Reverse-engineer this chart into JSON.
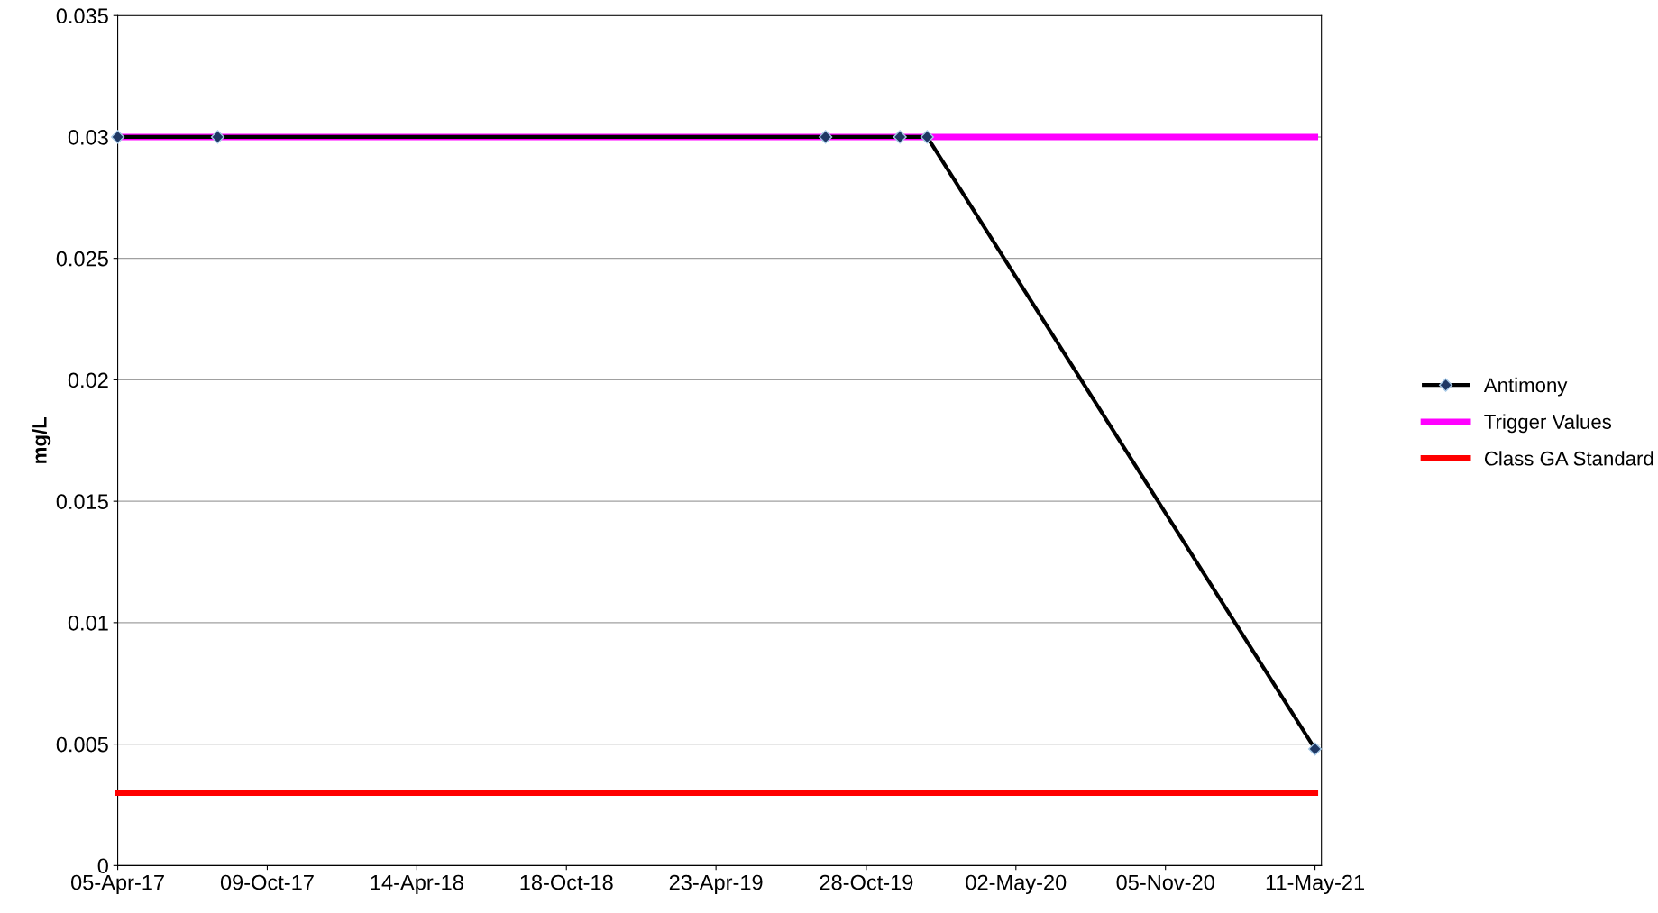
{
  "chart_data": {
    "type": "line",
    "ylabel": "mg/L",
    "series": [
      {
        "name": "Antimony",
        "color": "#000000",
        "marker": "diamond",
        "x": [
          "2017-04-05",
          "2017-08-08",
          "2019-09-07",
          "2019-12-09",
          "2020-01-12",
          "2021-05-11"
        ],
        "values": [
          0.03,
          0.03,
          0.03,
          0.03,
          0.03,
          0.0048
        ]
      },
      {
        "name": "Trigger Values",
        "color": "#ff00ff",
        "marker": "none",
        "x": [
          "2017-04-05",
          "2021-05-11"
        ],
        "values": [
          0.03,
          0.03
        ]
      },
      {
        "name": "Class GA Standard",
        "color": "#ff0000",
        "marker": "none",
        "x": [
          "2017-04-05",
          "2021-05-11"
        ],
        "values": [
          0.003,
          0.003
        ]
      }
    ],
    "xlim": [
      "2017-04-05",
      "2021-05-19"
    ],
    "xticks": [
      {
        "value": "2017-04-05",
        "label": "05-Apr-17"
      },
      {
        "value": "2017-10-09",
        "label": "09-Oct-17"
      },
      {
        "value": "2018-04-14",
        "label": "14-Apr-18"
      },
      {
        "value": "2018-10-18",
        "label": "18-Oct-18"
      },
      {
        "value": "2019-04-23",
        "label": "23-Apr-19"
      },
      {
        "value": "2019-10-28",
        "label": "28-Oct-19"
      },
      {
        "value": "2020-05-02",
        "label": "02-May-20"
      },
      {
        "value": "2020-11-05",
        "label": "05-Nov-20"
      },
      {
        "value": "2021-05-11",
        "label": "11-May-21"
      }
    ],
    "ylim": [
      0,
      0.035
    ],
    "yticks": [
      0,
      0.005,
      0.01,
      0.015,
      0.02,
      0.025,
      0.03,
      0.035
    ],
    "grid": "y",
    "legend": "right",
    "line_style": "solid"
  }
}
